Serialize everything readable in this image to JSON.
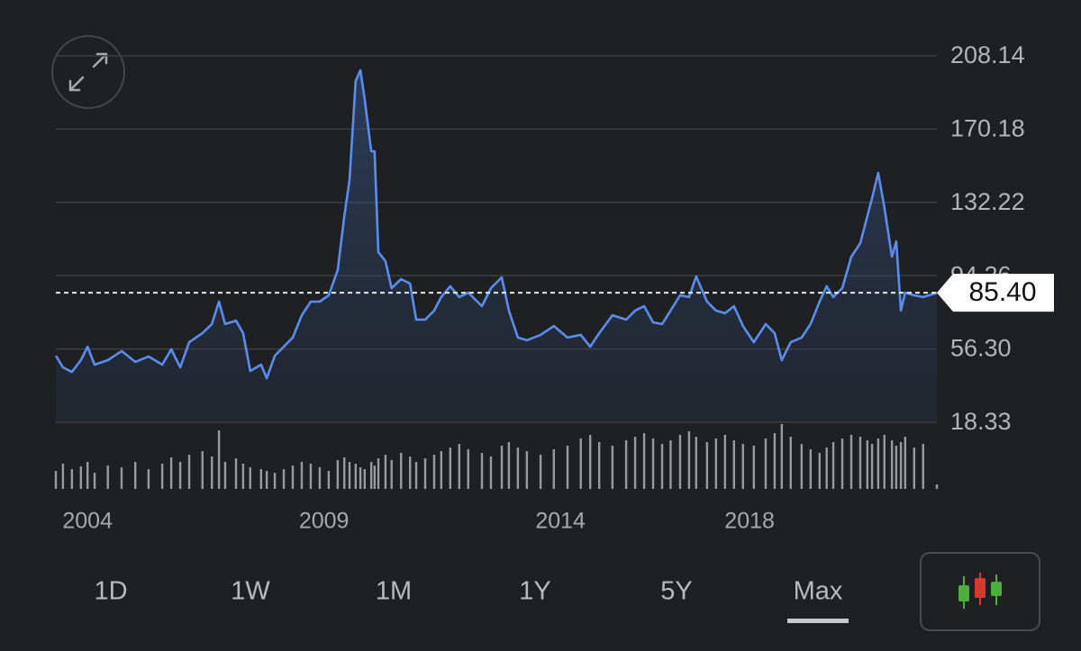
{
  "chart_data": {
    "type": "line",
    "x": [
      2003.33,
      2003.48,
      2003.67,
      2003.86,
      2004.0,
      2004.15,
      2004.43,
      2004.72,
      2005.01,
      2005.29,
      2005.58,
      2005.77,
      2005.96,
      2006.15,
      2006.43,
      2006.63,
      2006.78,
      2006.91,
      2007.14,
      2007.29,
      2007.44,
      2007.67,
      2007.79,
      2007.96,
      2008.15,
      2008.34,
      2008.53,
      2008.72,
      2008.91,
      2009.1,
      2009.29,
      2009.43,
      2009.54,
      2009.67,
      2009.77,
      2009.86,
      2010.0,
      2010.07,
      2010.15,
      2010.3,
      2010.43,
      2010.63,
      2010.82,
      2010.95,
      2011.14,
      2011.33,
      2011.48,
      2011.67,
      2011.86,
      2012.05,
      2012.34,
      2012.53,
      2012.76,
      2012.91,
      2013.1,
      2013.29,
      2013.58,
      2013.86,
      2014.15,
      2014.43,
      2014.63,
      2014.82,
      2015.1,
      2015.39,
      2015.58,
      2015.77,
      2015.96,
      2016.15,
      2016.33,
      2016.53,
      2016.72,
      2016.87,
      2017.1,
      2017.29,
      2017.48,
      2017.67,
      2017.86,
      2018.09,
      2018.34,
      2018.53,
      2018.68,
      2018.87,
      2019.1,
      2019.29,
      2019.48,
      2019.63,
      2019.77,
      2019.96,
      2020.15,
      2020.34,
      2020.49,
      2020.59,
      2020.72,
      2020.85,
      2021.01,
      2021.1,
      2021.2,
      2021.29,
      2021.48,
      2021.67,
      2021.96
    ],
    "series": [
      {
        "color": "#5b8def",
        "values": [
          52.8,
          46.8,
          44.4,
          50.5,
          57.5,
          48.2,
          50.5,
          55.2,
          49.6,
          52.4,
          48.2,
          56.1,
          46.8,
          59.8,
          64.5,
          69.2,
          80.8,
          69.2,
          71.0,
          64.5,
          44.9,
          48.2,
          41.2,
          52.8,
          57.5,
          62.2,
          73.8,
          80.8,
          80.8,
          84.1,
          97.2,
          125.1,
          143.8,
          195.1,
          200.7,
          185.8,
          158.7,
          158.7,
          106.5,
          101.8,
          87.8,
          92.5,
          90.2,
          71.5,
          71.5,
          76.2,
          83.2,
          88.8,
          83.2,
          85.5,
          78.5,
          87.8,
          93.4,
          76.2,
          62.2,
          60.8,
          63.6,
          68.2,
          62.2,
          63.6,
          57.5,
          64.5,
          73.8,
          71.5,
          76.2,
          78.5,
          70.1,
          69.2,
          76.2,
          84.1,
          83.2,
          93.9,
          80.8,
          76.2,
          74.8,
          78.5,
          68.2,
          59.8,
          69.2,
          64.5,
          50.5,
          59.8,
          62.2,
          69.2,
          80.8,
          88.8,
          83.2,
          87.8,
          104.1,
          111.1,
          125.1,
          134.5,
          147.5,
          129.8,
          104.1,
          112.0,
          76.2,
          85.5,
          84.1,
          83.2,
          85.4
        ]
      }
    ],
    "volume": {
      "color": "#9a9b9e",
      "values": [
        20,
        28,
        22,
        25,
        30,
        18,
        26,
        24,
        30,
        22,
        28,
        35,
        30,
        38,
        42,
        36,
        65,
        30,
        34,
        28,
        24,
        22,
        20,
        18,
        22,
        26,
        30,
        28,
        24,
        20,
        32,
        35,
        30,
        28,
        24,
        22,
        30,
        26,
        34,
        38,
        32,
        40,
        36,
        30,
        34,
        38,
        42,
        46,
        50,
        44,
        40,
        36,
        48,
        52,
        46,
        42,
        38,
        44,
        48,
        56,
        60,
        52,
        48,
        54,
        58,
        62,
        56,
        50,
        54,
        60,
        64,
        58,
        52,
        56,
        60,
        54,
        50,
        48,
        56,
        62,
        72,
        58,
        50,
        44,
        40,
        46,
        52,
        56,
        60,
        58,
        54,
        50,
        56,
        60,
        54,
        48,
        52,
        58,
        46,
        50,
        5
      ]
    },
    "xlim": [
      2003.33,
      2021.96
    ],
    "xticks": [
      2004,
      2009,
      2014,
      2018
    ],
    "ylim": [
      18.33,
      208.14
    ],
    "yticks": [
      18.33,
      {
        "value": 56.3,
        "label": "56.30"
      },
      94.26,
      132.22,
      170.18,
      208.14
    ],
    "grid": true,
    "last_price": {
      "value": 85.4,
      "label": "85.40"
    }
  },
  "ui": {
    "ranges": [
      "1D",
      "1W",
      "1M",
      "1Y",
      "5Y",
      "Max"
    ],
    "selected_range": 5
  }
}
